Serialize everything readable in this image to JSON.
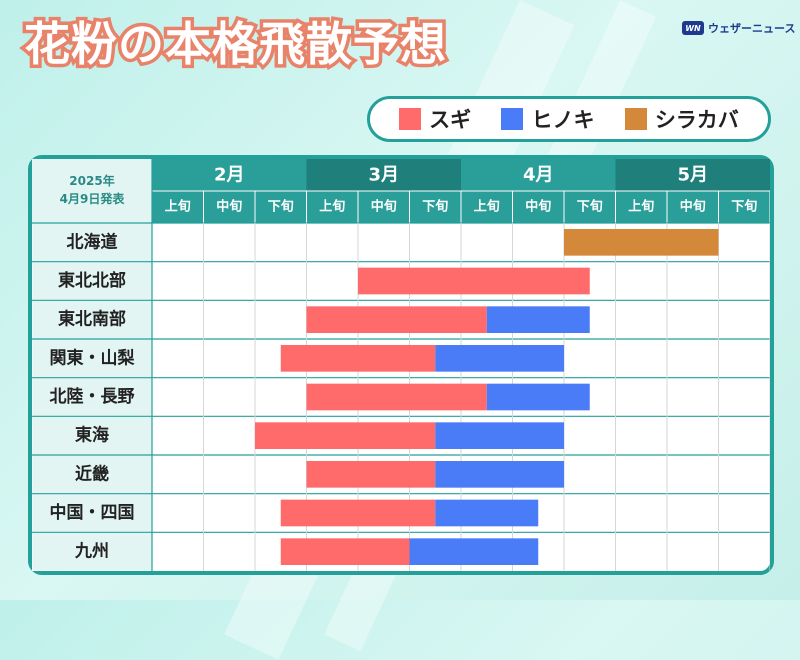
{
  "title": "花粉の本格飛散予想",
  "logo": {
    "mark": "WN",
    "text": "ウェザーニュース"
  },
  "legend": [
    {
      "label": "スギ",
      "color": "#ff6b6b"
    },
    {
      "label": "ヒノキ",
      "color": "#4a7cf7"
    },
    {
      "label": "シラカバ",
      "color": "#d4893a"
    }
  ],
  "chart_data": {
    "type": "bar",
    "subtype": "gantt",
    "date_label": [
      "2025年",
      "4月9日発表"
    ],
    "months": [
      "2月",
      "3月",
      "4月",
      "5月"
    ],
    "periods": [
      "上旬",
      "中旬",
      "下旬"
    ],
    "grid": true,
    "regions": [
      "北海道",
      "東北北部",
      "東北南部",
      "関東・山梨",
      "北陸・長野",
      "東海",
      "近畿",
      "中国・四国",
      "九州"
    ],
    "series": [
      {
        "name": "スギ",
        "color": "#ff6b6b",
        "spans": [
          null,
          [
            4.0,
            8.5
          ],
          [
            3.0,
            6.5
          ],
          [
            2.5,
            5.5
          ],
          [
            3.0,
            6.5
          ],
          [
            2.0,
            5.5
          ],
          [
            3.0,
            5.5
          ],
          [
            2.5,
            5.5
          ],
          [
            2.5,
            5.0
          ]
        ]
      },
      {
        "name": "ヒノキ",
        "color": "#4a7cf7",
        "spans": [
          null,
          null,
          [
            6.5,
            8.5
          ],
          [
            5.5,
            8.0
          ],
          [
            6.5,
            8.5
          ],
          [
            5.5,
            8.0
          ],
          [
            5.5,
            8.0
          ],
          [
            5.5,
            7.5
          ],
          [
            5.0,
            7.5
          ]
        ]
      },
      {
        "name": "シラカバ",
        "color": "#d4893a",
        "spans": [
          [
            8.0,
            11.0
          ],
          null,
          null,
          null,
          null,
          null,
          null,
          null,
          null
        ]
      }
    ]
  }
}
